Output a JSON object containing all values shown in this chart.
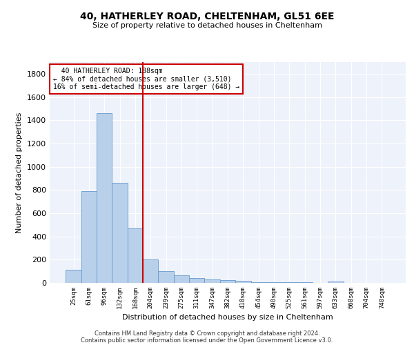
{
  "title1": "40, HATHERLEY ROAD, CHELTENHAM, GL51 6EE",
  "title2": "Size of property relative to detached houses in Cheltenham",
  "xlabel": "Distribution of detached houses by size in Cheltenham",
  "ylabel": "Number of detached properties",
  "categories": [
    "25sqm",
    "61sqm",
    "96sqm",
    "132sqm",
    "168sqm",
    "204sqm",
    "239sqm",
    "275sqm",
    "311sqm",
    "347sqm",
    "382sqm",
    "418sqm",
    "454sqm",
    "490sqm",
    "525sqm",
    "561sqm",
    "597sqm",
    "633sqm",
    "668sqm",
    "704sqm",
    "740sqm"
  ],
  "values": [
    110,
    790,
    1460,
    860,
    470,
    200,
    100,
    65,
    40,
    30,
    25,
    20,
    8,
    5,
    4,
    3,
    2,
    10,
    1,
    1,
    1
  ],
  "bar_color": "#b8d0ea",
  "bar_edge_color": "#6699cc",
  "vline_color": "#cc0000",
  "annotation_line1": "  40 HATHERLEY ROAD: 188sqm",
  "annotation_line2": "← 84% of detached houses are smaller (3,510)",
  "annotation_line3": "16% of semi-detached houses are larger (648) →",
  "annotation_box_color": "#ffffff",
  "annotation_box_edge": "#cc0000",
  "ylim": [
    0,
    1900
  ],
  "yticks": [
    0,
    200,
    400,
    600,
    800,
    1000,
    1200,
    1400,
    1600,
    1800
  ],
  "footer1": "Contains HM Land Registry data © Crown copyright and database right 2024.",
  "footer2": "Contains public sector information licensed under the Open Government Licence v3.0.",
  "bg_color": "#eef2fa"
}
